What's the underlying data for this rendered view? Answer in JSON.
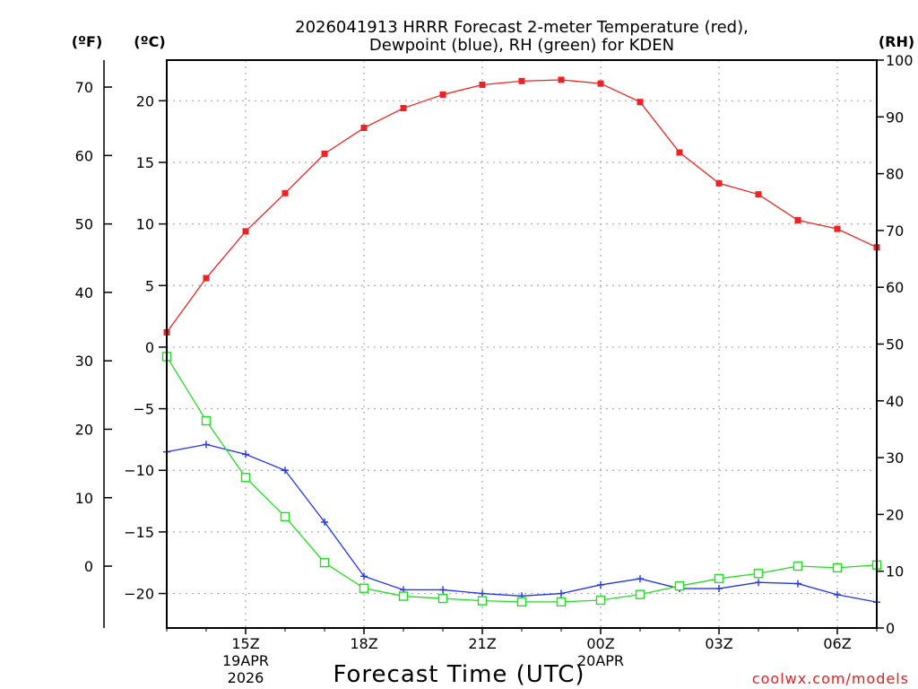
{
  "chart_data": {
    "type": "line",
    "title_line1": "2026041913 HRRR Forecast 2-meter Temperature (red),",
    "title_line2": "Dewpoint (blue), RH (green) for KDEN",
    "xlabel": "Forecast Time (UTC)",
    "watermark": "coolwx.com/models",
    "units": {
      "fahrenheit": "(ºF)",
      "celsius": "(ºC)",
      "rh": "(RH)"
    },
    "x_ticks": [
      {
        "hour": 2,
        "label": "15Z"
      },
      {
        "hour": 5,
        "label": "18Z"
      },
      {
        "hour": 8,
        "label": "21Z"
      },
      {
        "hour": 11,
        "label": "00Z"
      },
      {
        "hour": 14,
        "label": "03Z"
      },
      {
        "hour": 17,
        "label": "06Z"
      }
    ],
    "date_labels": [
      {
        "hour": 2,
        "line1": "19APR",
        "line2": "2026"
      },
      {
        "hour": 11,
        "line1": "20APR",
        "line2": ""
      }
    ],
    "xlim": [
      0,
      18
    ],
    "c_range": [
      -22.8,
      23.3
    ],
    "c_ticks": [
      -20,
      -15,
      -10,
      -5,
      0,
      5,
      10,
      15,
      20
    ],
    "f_ticks": [
      0,
      10,
      20,
      30,
      40,
      50,
      60,
      70
    ],
    "rh_range": [
      0,
      100
    ],
    "rh_ticks": [
      0,
      10,
      20,
      30,
      40,
      50,
      60,
      70,
      80,
      90,
      100
    ],
    "series": [
      {
        "name": "Temperature",
        "unit": "C",
        "color": "#ee2222",
        "marker": "filled-square",
        "x": [
          0,
          1,
          2,
          3,
          4,
          5,
          6,
          7,
          8,
          9,
          10,
          11,
          12,
          13,
          14,
          15,
          16,
          17,
          18
        ],
        "values": [
          1.2,
          5.6,
          9.4,
          12.5,
          15.7,
          17.8,
          19.4,
          20.5,
          21.3,
          21.6,
          21.7,
          21.4,
          19.9,
          15.8,
          13.3,
          12.4,
          10.3,
          9.6,
          8.1
        ]
      },
      {
        "name": "Dewpoint",
        "unit": "C",
        "color": "#2233ee",
        "marker": "plus",
        "x": [
          0,
          1,
          2,
          3,
          4,
          5,
          6,
          7,
          8,
          9,
          10,
          11,
          12,
          13,
          14,
          15,
          16,
          17,
          18
        ],
        "values": [
          -8.5,
          -7.9,
          -8.7,
          -10.0,
          -14.2,
          -18.6,
          -19.7,
          -19.7,
          -20.0,
          -20.2,
          -20.0,
          -19.3,
          -18.8,
          -19.6,
          -19.6,
          -19.1,
          -19.2,
          -20.1,
          -20.7
        ]
      },
      {
        "name": "RH",
        "unit": "%",
        "color": "#22dd22",
        "marker": "open-square",
        "x": [
          0,
          1,
          2,
          3,
          4,
          5,
          6,
          7,
          8,
          9,
          10,
          11,
          12,
          13,
          14,
          15,
          16,
          17,
          18
        ],
        "values": [
          47.8,
          36.5,
          26.5,
          19.6,
          11.5,
          7.0,
          5.6,
          5.2,
          4.8,
          4.6,
          4.6,
          4.9,
          5.9,
          7.4,
          8.7,
          9.6,
          10.9,
          10.6,
          11.1
        ]
      }
    ]
  }
}
